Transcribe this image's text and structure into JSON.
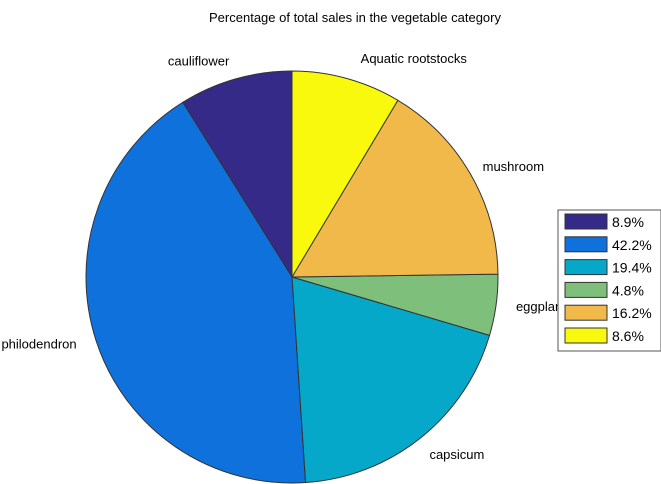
{
  "chart_data": {
    "type": "pie",
    "title": "Percentage of total sales in the vegetable category",
    "slices": [
      {
        "label": "cauliflower",
        "legend": "8.9%",
        "value": 8.9,
        "color": "#352a87"
      },
      {
        "label": "philodendron",
        "legend": "42.2%",
        "value": 42.2,
        "color": "#0f72dc"
      },
      {
        "label": "capsicum",
        "legend": "19.4%",
        "value": 19.4,
        "color": "#05a8c8"
      },
      {
        "label": "eggplant",
        "legend": "4.8%",
        "value": 4.8,
        "color": "#7dbf7b"
      },
      {
        "label": "mushroom",
        "legend": "16.2%",
        "value": 16.2,
        "color": "#f0b94a"
      },
      {
        "label": "Aquatic rootstocks",
        "legend": "8.6%",
        "value": 8.6,
        "color": "#f9f90e"
      }
    ],
    "direction": "counterclockwise",
    "start": "top",
    "legend_placement": "right"
  }
}
